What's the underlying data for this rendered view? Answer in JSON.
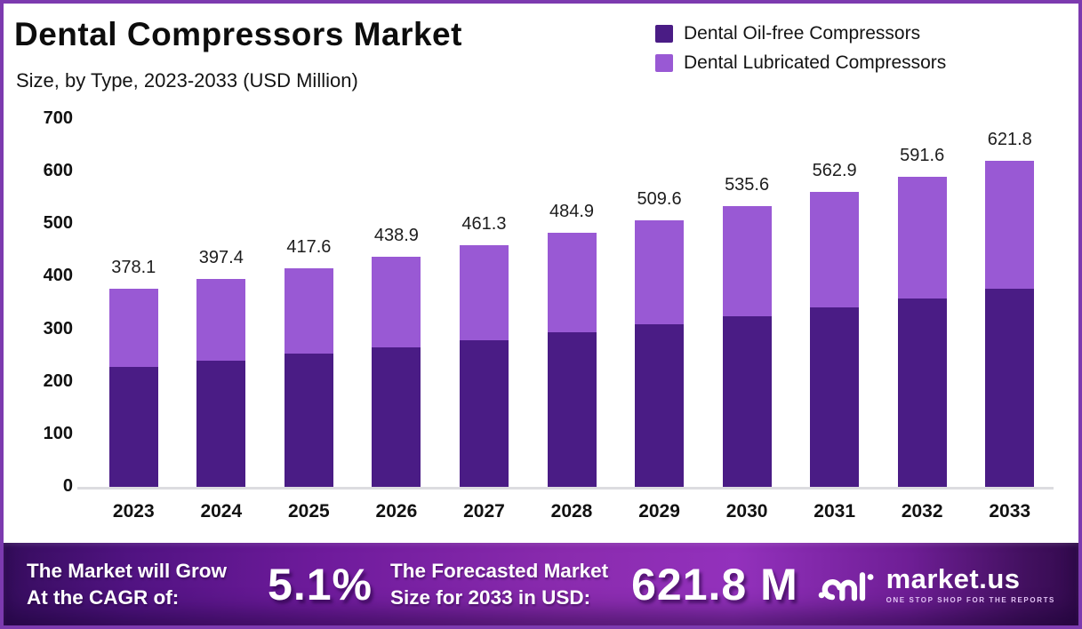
{
  "header": {
    "title": "Dental Compressors Market",
    "subtitle": "Size, by Type, 2023-2033 (USD Million)"
  },
  "legend": [
    {
      "label": "Dental Oil-free Compressors",
      "color": "#4a1c85"
    },
    {
      "label": "Dental Lubricated Compressors",
      "color": "#9959d4"
    }
  ],
  "chart_data": {
    "type": "bar",
    "stacked": true,
    "title": "Dental Compressors Market Size, by Type, 2023-2033 (USD Million)",
    "categories": [
      "2023",
      "2024",
      "2025",
      "2026",
      "2027",
      "2028",
      "2029",
      "2030",
      "2031",
      "2032",
      "2033"
    ],
    "series": [
      {
        "name": "Dental Oil-free Compressors",
        "color": "#4a1c85",
        "values": [
          230.6,
          242.4,
          254.7,
          267.7,
          281.4,
          295.8,
          310.9,
          326.7,
          343.4,
          360.9,
          379.3
        ]
      },
      {
        "name": "Dental Lubricated Compressors",
        "color": "#9959d4",
        "values": [
          147.5,
          155.0,
          162.9,
          171.2,
          179.9,
          189.1,
          198.7,
          208.9,
          219.5,
          230.7,
          242.5
        ]
      }
    ],
    "totals": [
      378.1,
      397.4,
      417.6,
      438.9,
      461.3,
      484.9,
      509.6,
      535.6,
      562.9,
      591.6,
      621.8
    ],
    "y_axis": {
      "ticks": [
        700,
        600,
        500,
        400,
        300,
        200,
        100,
        0
      ],
      "min": 0,
      "max": 700
    },
    "xlabel": "",
    "ylabel": "",
    "grid": false,
    "legend_position": "top-right"
  },
  "footer": {
    "cagr_label_line1": "The Market will Grow",
    "cagr_label_line2": "At the CAGR of:",
    "cagr_value": "5.1%",
    "forecast_label_line1": "The Forecasted Market",
    "forecast_label_line2": "Size for 2033 in USD:",
    "forecast_value": "621.8 M",
    "brand": "market.us",
    "brand_tagline": "ONE STOP SHOP FOR THE REPORTS"
  },
  "colors": {
    "border": "#7c3aaf",
    "background": "#ffffff",
    "oil_free_bar": "#4a1c85",
    "lubricated_bar": "#9959d4",
    "banner_center": "#8a2bae",
    "banner_edge": "#360d5e"
  }
}
